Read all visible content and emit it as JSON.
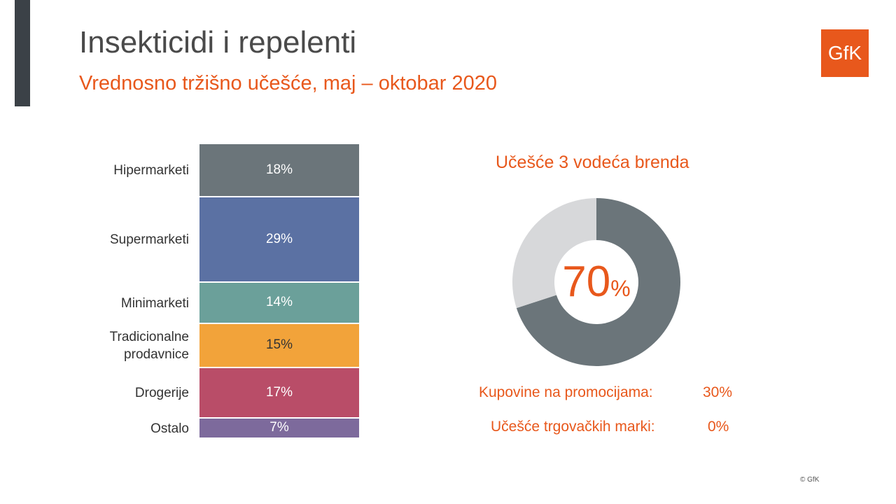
{
  "header": {
    "title": "Insekticidi i repelenti",
    "subtitle": "Vrednosno tržišno učešće, maj – oktobar 2020",
    "logo": "GfK"
  },
  "colors": {
    "accent": "#e8581c"
  },
  "chart_data": [
    {
      "type": "bar",
      "stacked": true,
      "categories": [
        "Hipermarketi",
        "Supermarketi",
        "Minimarketi",
        "Tradicionalne prodavnice",
        "Drogerije",
        "Ostalo"
      ],
      "values": [
        18,
        29,
        14,
        15,
        17,
        7
      ],
      "labels": [
        "18%",
        "29%",
        "14%",
        "15%",
        "17%",
        "7%"
      ],
      "colors": [
        "#6b757a",
        "#5b71a3",
        "#6ba09a",
        "#f2a33a",
        "#b94d68",
        "#7d6a9c"
      ],
      "label_colors": [
        "#fff",
        "#fff",
        "#fff",
        "#333",
        "#fff",
        "#fff"
      ],
      "ylim": [
        0,
        100
      ]
    },
    {
      "type": "pie",
      "donut": true,
      "title": "Učešće 3 vodeća brenda",
      "values": [
        70,
        30
      ],
      "colors": [
        "#6b757a",
        "#d7d8da"
      ],
      "center_value": "70",
      "center_unit": "%"
    }
  ],
  "stats": [
    {
      "label": "Kupovine na promocijama:",
      "value": "30%"
    },
    {
      "label": "Učešće trgovačkih marki:",
      "value": "0%"
    }
  ],
  "footer": {
    "copyright": "© GfK"
  }
}
